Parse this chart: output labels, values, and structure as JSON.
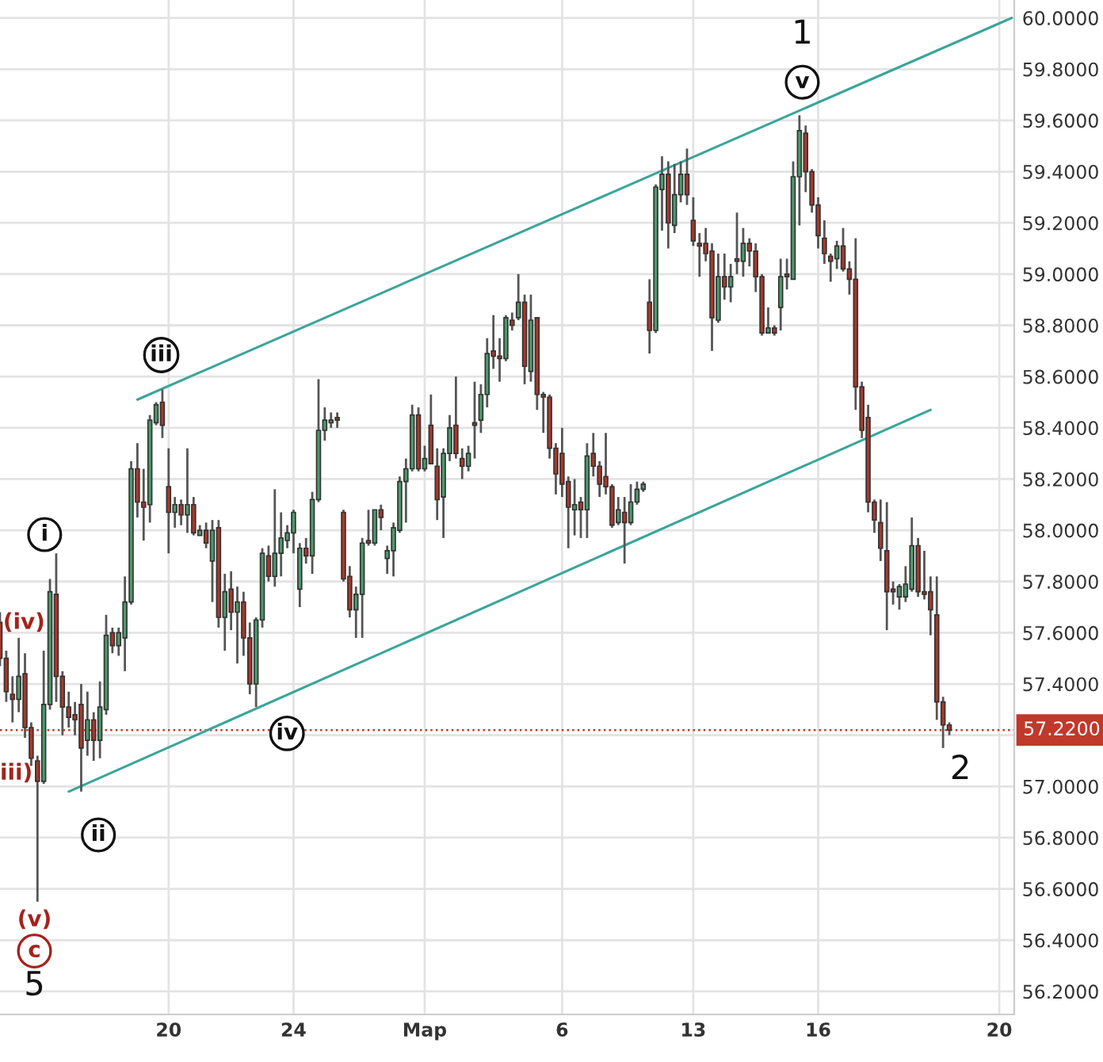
{
  "chart_data": {
    "type": "candlestick",
    "categories": [
      null,
      null,
      null,
      null,
      null,
      null,
      null,
      null,
      null,
      null,
      null,
      null,
      null,
      null,
      null,
      null,
      null,
      null,
      null,
      null,
      null,
      null,
      null,
      null,
      null,
      null,
      null,
      "20",
      null,
      null,
      null,
      null,
      null,
      null,
      null,
      null,
      null,
      null,
      null,
      null,
      null,
      null,
      null,
      null,
      null,
      null,
      null,
      "24",
      null,
      null,
      null,
      null,
      null,
      null,
      null,
      null,
      null,
      null,
      null,
      null,
      null,
      null,
      null,
      null,
      null,
      null,
      null,
      null,
      "Мар",
      null,
      null,
      null,
      null,
      null,
      null,
      null,
      null,
      null,
      null,
      null,
      null,
      null,
      null,
      null,
      null,
      null,
      null,
      null,
      null,
      null,
      "6",
      null,
      null,
      null,
      null,
      null,
      null,
      null,
      null,
      null,
      null,
      null,
      null,
      null,
      null,
      null,
      null,
      null,
      null,
      null,
      null,
      "13",
      null,
      null,
      null,
      null,
      null,
      null,
      null,
      null,
      null,
      null,
      null,
      null,
      null,
      null,
      null,
      null,
      null,
      null,
      null,
      "16",
      null,
      null,
      null,
      null,
      null,
      null,
      null,
      null,
      null,
      null,
      null,
      null,
      null,
      null,
      null,
      null,
      null,
      null,
      null,
      null,
      null,
      null,
      null,
      null,
      null,
      null,
      null,
      null,
      "20",
      null,
      null
    ],
    "ohlc": [
      [
        57.64,
        57.68,
        57.47,
        57.5
      ],
      [
        57.5,
        57.53,
        57.33,
        57.37
      ],
      [
        57.36,
        57.43,
        57.25,
        57.34
      ],
      [
        57.34,
        57.58,
        57.29,
        57.43
      ],
      [
        57.44,
        57.52,
        57.19,
        57.23
      ],
      [
        57.23,
        57.25,
        57.08,
        57.11
      ],
      [
        57.1,
        57.12,
        56.55,
        57.02
      ],
      [
        57.02,
        57.53,
        57.01,
        57.32
      ],
      [
        57.32,
        57.81,
        57.3,
        57.76
      ],
      [
        57.75,
        57.91,
        57.33,
        57.43
      ],
      [
        57.43,
        57.45,
        57.2,
        57.31
      ],
      [
        57.31,
        57.37,
        57.23,
        57.27
      ],
      [
        57.28,
        57.33,
        57.2,
        57.26
      ],
      [
        57.32,
        57.4,
        56.98,
        57.15
      ],
      [
        57.18,
        57.37,
        57.12,
        57.26
      ],
      [
        57.26,
        57.29,
        57.1,
        57.18
      ],
      [
        57.18,
        57.41,
        57.11,
        57.31
      ],
      [
        57.3,
        57.67,
        57.28,
        57.59
      ],
      [
        57.6,
        57.62,
        57.52,
        57.55
      ],
      [
        57.55,
        57.62,
        57.51,
        57.6
      ],
      [
        57.58,
        57.82,
        57.45,
        57.72
      ],
      [
        57.72,
        58.27,
        57.71,
        58.24
      ],
      [
        58.24,
        58.34,
        58.05,
        58.11
      ],
      [
        58.11,
        58.24,
        57.96,
        58.09
      ],
      [
        58.1,
        58.45,
        58.03,
        58.43
      ],
      [
        58.42,
        58.5,
        58.41,
        58.49
      ],
      [
        58.5,
        58.55,
        58.36,
        58.41
      ],
      [
        58.17,
        58.32,
        57.91,
        58.07
      ],
      [
        58.07,
        58.13,
        58.01,
        58.1
      ],
      [
        58.1,
        58.12,
        58.02,
        58.06
      ],
      [
        58.06,
        58.32,
        57.99,
        58.1
      ],
      [
        58.1,
        58.13,
        57.98,
        57.99
      ],
      [
        57.98,
        58.02,
        57.98,
        58.0
      ],
      [
        58.0,
        58.03,
        57.93,
        57.95
      ],
      [
        57.88,
        58.04,
        57.72,
        58.0
      ],
      [
        58.01,
        58.04,
        57.62,
        57.66
      ],
      [
        57.66,
        57.83,
        57.53,
        57.76
      ],
      [
        57.77,
        57.84,
        57.61,
        57.68
      ],
      [
        57.68,
        57.78,
        57.48,
        57.72
      ],
      [
        57.72,
        57.76,
        57.51,
        57.58
      ],
      [
        57.58,
        57.64,
        57.36,
        57.4
      ],
      [
        57.4,
        57.66,
        57.31,
        57.65
      ],
      [
        57.65,
        57.93,
        57.62,
        57.91
      ],
      [
        57.9,
        57.94,
        57.8,
        57.82
      ],
      [
        57.82,
        58.16,
        57.78,
        57.91
      ],
      [
        57.91,
        58.07,
        57.82,
        57.97
      ],
      [
        57.96,
        58.02,
        57.93,
        57.99
      ],
      [
        57.99,
        58.08,
        57.91,
        58.07
      ],
      [
        57.77,
        57.95,
        57.7,
        57.93
      ],
      [
        57.93,
        57.97,
        57.87,
        57.9
      ],
      [
        57.9,
        58.15,
        57.83,
        58.12
      ],
      [
        58.12,
        58.59,
        58.11,
        58.39
      ],
      [
        58.39,
        58.48,
        58.35,
        58.43
      ],
      [
        58.42,
        58.46,
        58.4,
        58.43
      ],
      [
        58.44,
        58.46,
        58.4,
        58.43
      ],
      [
        58.07,
        58.08,
        57.8,
        57.81
      ],
      [
        57.82,
        57.86,
        57.66,
        57.69
      ],
      [
        57.69,
        57.78,
        57.58,
        57.75
      ],
      [
        57.75,
        57.97,
        57.58,
        57.95
      ],
      [
        57.96,
        58.08,
        57.94,
        57.95
      ],
      [
        57.95,
        58.08,
        57.94,
        58.08
      ],
      [
        58.08,
        58.1,
        58.0,
        58.05
      ],
      [
        57.89,
        57.94,
        57.83,
        57.92
      ],
      [
        57.92,
        58.03,
        57.82,
        58.01
      ],
      [
        58.0,
        58.21,
        57.99,
        58.19
      ],
      [
        58.19,
        58.28,
        58.03,
        58.24
      ],
      [
        58.24,
        58.49,
        58.23,
        58.45
      ],
      [
        58.45,
        58.48,
        58.23,
        58.24
      ],
      [
        58.24,
        58.33,
        58.23,
        58.28
      ],
      [
        58.41,
        58.53,
        58.26,
        58.26
      ],
      [
        58.25,
        58.32,
        58.04,
        58.12
      ],
      [
        58.13,
        58.32,
        57.97,
        58.3
      ],
      [
        58.3,
        58.45,
        58.27,
        58.4
      ],
      [
        58.41,
        58.6,
        58.28,
        58.3
      ],
      [
        58.28,
        58.32,
        58.2,
        58.25
      ],
      [
        58.25,
        58.33,
        58.23,
        58.3
      ],
      [
        58.42,
        58.58,
        58.28,
        58.41
      ],
      [
        58.43,
        58.57,
        58.38,
        58.53
      ],
      [
        58.53,
        58.75,
        58.48,
        58.69
      ],
      [
        58.7,
        58.84,
        58.63,
        58.68
      ],
      [
        58.68,
        58.75,
        58.58,
        58.67
      ],
      [
        58.67,
        58.84,
        58.66,
        58.83
      ],
      [
        58.82,
        58.85,
        58.78,
        58.8
      ],
      [
        58.83,
        59.0,
        58.82,
        58.89
      ],
      [
        58.89,
        58.92,
        58.57,
        58.64
      ],
      [
        58.62,
        58.92,
        58.58,
        58.82
      ],
      [
        58.83,
        58.83,
        58.47,
        58.53
      ],
      [
        58.53,
        58.54,
        58.38,
        58.52
      ],
      [
        58.52,
        58.53,
        58.28,
        58.32
      ],
      [
        58.32,
        58.34,
        58.14,
        58.22
      ],
      [
        58.3,
        58.4,
        58.13,
        58.18
      ],
      [
        58.19,
        58.21,
        57.93,
        58.09
      ],
      [
        58.08,
        58.2,
        57.98,
        58.1
      ],
      [
        58.11,
        58.13,
        57.97,
        58.08
      ],
      [
        58.08,
        58.34,
        57.97,
        58.29
      ],
      [
        58.3,
        58.38,
        58.21,
        58.25
      ],
      [
        58.25,
        58.27,
        58.13,
        58.18
      ],
      [
        58.21,
        58.38,
        58.14,
        58.17
      ],
      [
        58.17,
        58.18,
        58.01,
        58.02
      ],
      [
        58.03,
        58.13,
        58.02,
        58.08
      ],
      [
        58.07,
        58.13,
        57.87,
        58.03
      ],
      [
        58.03,
        58.18,
        58.02,
        58.11
      ],
      [
        58.11,
        58.19,
        58.1,
        58.16
      ],
      [
        58.16,
        58.19,
        58.15,
        58.18
      ],
      [
        58.89,
        58.98,
        58.69,
        58.78
      ],
      [
        58.78,
        59.35,
        58.77,
        59.34
      ],
      [
        59.33,
        59.46,
        59.17,
        59.39
      ],
      [
        59.39,
        59.44,
        59.1,
        59.2
      ],
      [
        59.19,
        59.43,
        59.16,
        59.31
      ],
      [
        59.31,
        59.44,
        59.28,
        59.39
      ],
      [
        59.39,
        59.49,
        59.27,
        59.31
      ],
      [
        59.21,
        59.3,
        59.11,
        59.13
      ],
      [
        59.12,
        59.16,
        58.99,
        59.11
      ],
      [
        59.12,
        59.18,
        59.05,
        59.08
      ],
      [
        59.09,
        59.12,
        58.7,
        58.83
      ],
      [
        58.82,
        59.08,
        58.81,
        58.99
      ],
      [
        58.99,
        59.08,
        58.9,
        58.95
      ],
      [
        58.95,
        59.04,
        58.89,
        58.99
      ],
      [
        59.06,
        59.24,
        59.0,
        59.05
      ],
      [
        59.05,
        59.18,
        58.99,
        59.12
      ],
      [
        59.12,
        59.14,
        59.03,
        59.09
      ],
      [
        59.09,
        59.12,
        58.93,
        58.99
      ],
      [
        58.99,
        59.0,
        58.76,
        58.77
      ],
      [
        58.77,
        58.87,
        58.77,
        58.79
      ],
      [
        58.79,
        58.8,
        58.76,
        58.77
      ],
      [
        58.87,
        59.06,
        58.78,
        58.99
      ],
      [
        59.0,
        59.06,
        58.94,
        58.99
      ],
      [
        58.98,
        59.44,
        58.98,
        59.38
      ],
      [
        59.38,
        59.62,
        59.19,
        59.56
      ],
      [
        59.55,
        59.58,
        59.32,
        59.4
      ],
      [
        59.4,
        59.41,
        59.24,
        59.27
      ],
      [
        59.27,
        59.3,
        59.1,
        59.15
      ],
      [
        59.14,
        59.21,
        59.04,
        59.08
      ],
      [
        59.07,
        59.08,
        58.97,
        59.05
      ],
      [
        59.06,
        59.13,
        59.02,
        59.11
      ],
      [
        59.11,
        59.18,
        59.01,
        59.02
      ],
      [
        59.02,
        59.05,
        58.92,
        58.98
      ],
      [
        58.98,
        59.14,
        58.47,
        58.56
      ],
      [
        58.56,
        58.58,
        58.36,
        58.39
      ],
      [
        58.44,
        58.49,
        58.07,
        58.11
      ],
      [
        58.11,
        58.12,
        57.99,
        58.04
      ],
      [
        58.03,
        58.12,
        57.88,
        57.93
      ],
      [
        57.92,
        58.11,
        57.61,
        57.76
      ],
      [
        57.77,
        57.8,
        57.71,
        57.76
      ],
      [
        57.74,
        57.79,
        57.69,
        57.78
      ],
      [
        57.74,
        57.86,
        57.72,
        57.79
      ],
      [
        57.77,
        58.05,
        57.76,
        57.94
      ],
      [
        57.94,
        57.97,
        57.74,
        57.76
      ],
      [
        57.76,
        57.92,
        57.73,
        57.75
      ],
      [
        57.76,
        57.82,
        57.59,
        57.69
      ],
      [
        57.67,
        57.82,
        57.26,
        57.33
      ],
      [
        57.33,
        57.35,
        57.15,
        57.24
      ],
      [
        57.24,
        57.25,
        57.2,
        57.22
      ],
      null,
      null,
      null,
      null,
      null,
      null,
      null,
      null,
      null,
      null
    ],
    "colors": [
      "#a8382a",
      "#a8382a",
      "#a8382a",
      "#4c9a6c",
      "#a8382a",
      "#a8382a",
      "#a8382a",
      "#4c9a6c",
      "#4c9a6c",
      "#a8382a",
      "#a8382a",
      "#a8382a",
      "#a8382a",
      "#a8382a",
      "#4c9a6c",
      "#a8382a",
      "#4c9a6c",
      "#4c9a6c",
      "#a8382a",
      "#4c9a6c",
      "#4c9a6c",
      "#4c9a6c",
      "#a8382a",
      "#a8382a",
      "#4c9a6c",
      "#4c9a6c",
      "#a8382a",
      "#a8382a",
      "#4c9a6c",
      "#a8382a",
      "#4c9a6c",
      "#a8382a",
      "#4c9a6c",
      "#a8382a",
      "#4c9a6c",
      "#a8382a",
      "#4c9a6c",
      "#a8382a",
      "#4c9a6c",
      "#a8382a",
      "#a8382a",
      "#4c9a6c",
      "#4c9a6c",
      "#a8382a",
      "#4c9a6c",
      "#4c9a6c",
      "#4c9a6c",
      "#4c9a6c",
      "#4c9a6c",
      "#a8382a",
      "#4c9a6c",
      "#4c9a6c",
      "#4c9a6c",
      "#4c9a6c",
      "#a8382a",
      "#a8382a",
      "#a8382a",
      "#4c9a6c",
      "#4c9a6c",
      "#a8382a",
      "#4c9a6c",
      "#a8382a",
      "#4c9a6c",
      "#4c9a6c",
      "#4c9a6c",
      "#4c9a6c",
      "#4c9a6c",
      "#a8382a",
      "#4c9a6c",
      "#a8382a",
      "#a8382a",
      "#4c9a6c",
      "#4c9a6c",
      "#a8382a",
      "#a8382a",
      "#4c9a6c",
      "#a8382a",
      "#4c9a6c",
      "#4c9a6c",
      "#a8382a",
      "#a8382a",
      "#4c9a6c",
      "#a8382a",
      "#4c9a6c",
      "#a8382a",
      "#4c9a6c",
      "#a8382a",
      "#a8382a",
      "#a8382a",
      "#a8382a",
      "#a8382a",
      "#a8382a",
      "#4c9a6c",
      "#a8382a",
      "#4c9a6c",
      "#a8382a",
      "#a8382a",
      "#a8382a",
      "#a8382a",
      "#4c9a6c",
      "#a8382a",
      "#4c9a6c",
      "#4c9a6c",
      "#4c9a6c",
      "#a8382a",
      "#4c9a6c",
      "#4c9a6c",
      "#a8382a",
      "#4c9a6c",
      "#4c9a6c",
      "#a8382a",
      "#a8382a",
      "#a8382a",
      "#a8382a",
      "#a8382a",
      "#4c9a6c",
      "#a8382a",
      "#4c9a6c",
      "#a8382a",
      "#4c9a6c",
      "#a8382a",
      "#a8382a",
      "#a8382a",
      "#4c9a6c",
      "#a8382a",
      "#4c9a6c",
      "#a8382a",
      "#4c9a6c",
      "#4c9a6c",
      "#a8382a",
      "#a8382a",
      "#a8382a",
      "#a8382a",
      "#a8382a",
      "#4c9a6c",
      "#a8382a",
      "#a8382a",
      "#a8382a",
      "#a8382a",
      "#a8382a",
      "#a8382a",
      "#a8382a",
      "#a8382a",
      "#a8382a",
      "#4c9a6c",
      "#4c9a6c",
      "#4c9a6c",
      "#a8382a",
      "#a8382a",
      "#a8382a",
      "#a8382a",
      "#a8382a",
      "#a8382a",
      null,
      null,
      null,
      null,
      null,
      null,
      null,
      null,
      null,
      null
    ],
    "series": [
      {
        "type": "line",
        "color": "#3aa59b",
        "values": [
          null,
          null,
          null,
          null,
          null,
          null,
          null,
          null,
          null,
          null,
          null,
          null,
          null,
          null,
          null,
          null,
          null,
          null,
          null,
          null,
          null,
          null,
          58.51,
          null,
          null,
          null,
          null,
          null,
          null,
          null,
          null,
          null,
          null,
          null,
          null,
          null,
          null,
          null,
          null,
          null,
          null,
          null,
          null,
          null,
          null,
          null,
          null,
          null,
          null,
          null,
          null,
          null,
          null,
          null,
          null,
          null,
          null,
          null,
          null,
          null,
          null,
          null,
          null,
          null,
          null,
          null,
          null,
          null,
          null,
          null,
          null,
          null,
          null,
          null,
          null,
          null,
          null,
          null,
          null,
          null,
          null,
          null,
          null,
          null,
          null,
          null,
          null,
          null,
          null,
          null,
          null,
          null,
          null,
          null,
          null,
          null,
          null,
          null,
          null,
          null,
          null,
          null,
          null,
          null,
          null,
          null,
          null,
          null,
          null,
          null,
          null,
          null,
          null,
          null,
          null,
          null,
          null,
          null,
          null,
          null,
          null,
          null,
          null,
          null,
          null,
          null,
          null,
          null,
          null,
          null,
          null,
          null,
          null,
          null,
          null,
          null,
          null,
          null,
          null,
          null,
          null,
          null,
          null,
          null,
          null,
          null,
          null,
          null,
          null,
          null,
          null,
          null,
          null,
          null,
          null,
          null,
          null,
          null,
          null,
          null,
          null,
          null,
          60.0
        ]
      },
      {
        "type": "line",
        "color": "#3aa59b",
        "values": [
          null,
          null,
          null,
          null,
          null,
          null,
          null,
          null,
          null,
          null,
          null,
          56.98,
          null,
          null,
          null,
          null,
          null,
          null,
          null,
          null,
          null,
          null,
          null,
          null,
          null,
          null,
          null,
          null,
          null,
          null,
          null,
          null,
          null,
          null,
          null,
          null,
          null,
          null,
          null,
          null,
          null,
          null,
          null,
          null,
          null,
          null,
          null,
          null,
          null,
          null,
          null,
          null,
          null,
          null,
          null,
          null,
          null,
          null,
          null,
          null,
          null,
          null,
          null,
          null,
          null,
          null,
          null,
          null,
          null,
          null,
          null,
          null,
          null,
          null,
          null,
          null,
          null,
          null,
          null,
          null,
          null,
          null,
          null,
          null,
          null,
          null,
          null,
          null,
          null,
          null,
          null,
          null,
          null,
          null,
          null,
          null,
          null,
          null,
          null,
          null,
          null,
          null,
          null,
          null,
          null,
          null,
          null,
          null,
          null,
          null,
          null,
          null,
          null,
          null,
          null,
          null,
          null,
          null,
          null,
          null,
          null,
          null,
          null,
          null,
          null,
          null,
          null,
          null,
          null,
          null,
          null,
          null,
          null,
          null,
          null,
          null,
          null,
          null,
          null,
          null,
          null,
          null,
          null,
          null,
          null,
          null,
          null,
          null,
          null,
          58.47,
          null,
          null,
          null,
          null,
          null,
          null,
          null,
          null,
          null,
          null,
          null,
          null,
          null
        ]
      }
    ],
    "ylim": [
      56.11,
      60.07
    ],
    "yticks": [
      {
        "value": 56.2,
        "label": "56.2000"
      },
      {
        "value": 56.4,
        "label": "56.4000"
      },
      {
        "value": 56.6,
        "label": "56.6000"
      },
      {
        "value": 56.8,
        "label": "56.8000"
      },
      {
        "value": 57.0,
        "label": "57.0000"
      },
      {
        "value": 57.2,
        "label": null
      },
      {
        "value": 57.4,
        "label": "57.4000"
      },
      {
        "value": 57.6,
        "label": "57.6000"
      },
      {
        "value": 57.8,
        "label": "57.8000"
      },
      {
        "value": 58.0,
        "label": "58.0000"
      },
      {
        "value": 58.2,
        "label": "58.2000"
      },
      {
        "value": 58.4,
        "label": "58.4000"
      },
      {
        "value": 58.6,
        "label": "58.6000"
      },
      {
        "value": 58.8,
        "label": "58.8000"
      },
      {
        "value": 59.0,
        "label": "59.0000"
      },
      {
        "value": 59.2,
        "label": "59.2000"
      },
      {
        "value": 59.4,
        "label": "59.4000"
      },
      {
        "value": 59.6,
        "label": "59.6000"
      },
      {
        "value": 59.8,
        "label": "59.8000"
      },
      {
        "value": 60.0,
        "label": "60.0000"
      }
    ],
    "ref_lines": [
      {
        "axis": "y",
        "value": 57.22,
        "label": "57.2200",
        "color": "#c0392b",
        "line_style": "dotted"
      }
    ],
    "grid": true,
    "annotations": [
      "(iv)",
      "iii)",
      "(v)",
      "c",
      "5",
      "i",
      "ii",
      "iii",
      "iv",
      "v",
      "1",
      "2"
    ]
  }
}
